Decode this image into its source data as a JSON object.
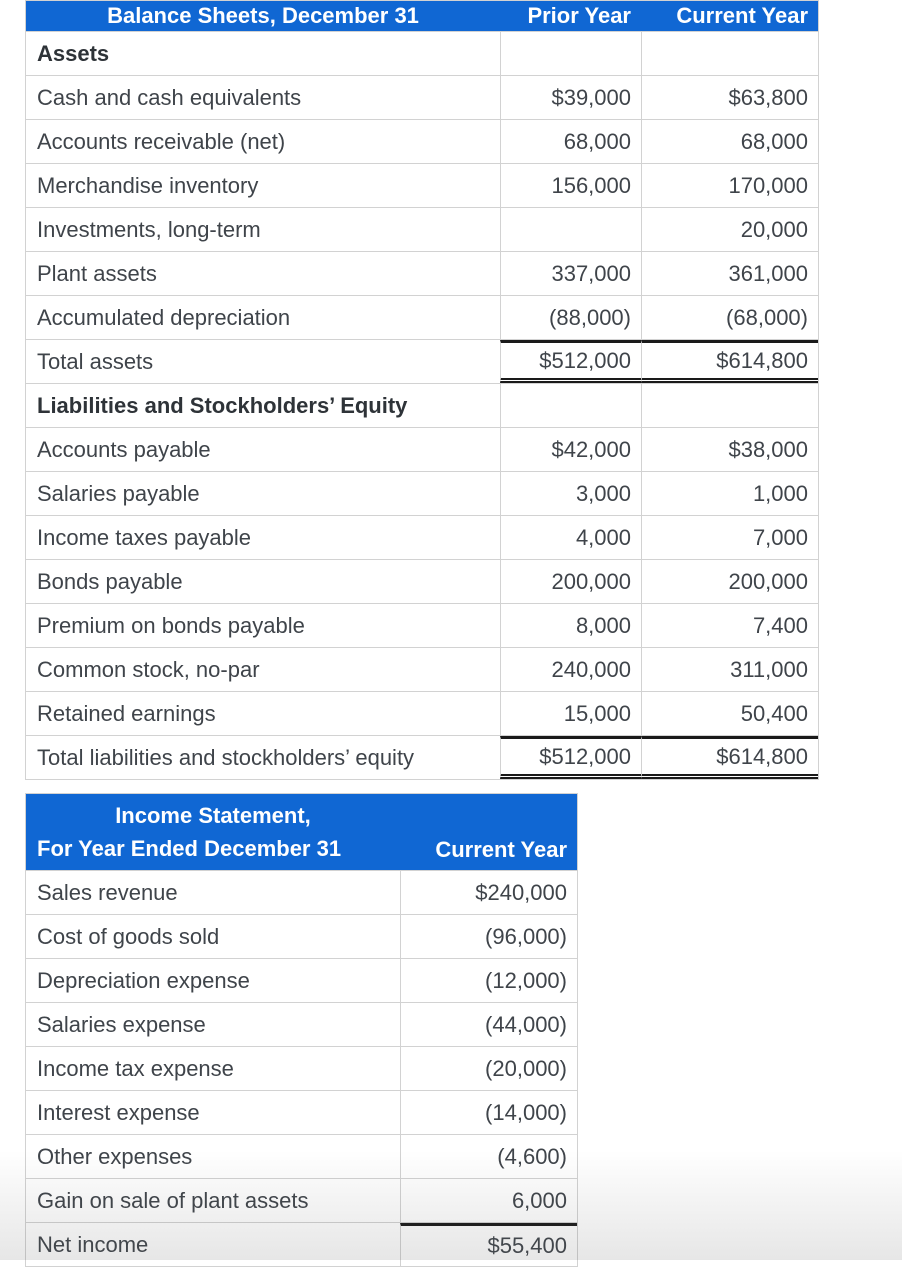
{
  "colors": {
    "accent_blue": "#1067d3",
    "grid_border": "#d2d2d2",
    "text": "#3f444a",
    "total_rule": "#1a1a1a"
  },
  "balance_sheet": {
    "title": "Balance Sheets, December 31",
    "columns": [
      "Prior Year",
      "Current Year"
    ],
    "rows": [
      {
        "label": "Assets",
        "prior": "",
        "current": "",
        "style": "section"
      },
      {
        "label": "Cash and cash equivalents",
        "prior": "$39,000",
        "current": "$63,800",
        "style": "item"
      },
      {
        "label": "Accounts receivable (net)",
        "prior": "68,000",
        "current": "68,000",
        "style": "item"
      },
      {
        "label": "Merchandise inventory",
        "prior": "156,000",
        "current": "170,000",
        "style": "item"
      },
      {
        "label": "Investments, long-term",
        "prior": "",
        "current": "20,000",
        "style": "item"
      },
      {
        "label": "Plant assets",
        "prior": "337,000",
        "current": "361,000",
        "style": "item"
      },
      {
        "label": "Accumulated depreciation",
        "prior": "(88,000)",
        "current": "(68,000)",
        "style": "item"
      },
      {
        "label": "Total assets",
        "prior": "$512,000",
        "current": "$614,800",
        "style": "total"
      },
      {
        "label": "Liabilities and Stockholders’ Equity",
        "prior": "",
        "current": "",
        "style": "section"
      },
      {
        "label": "Accounts payable",
        "prior": "$42,000",
        "current": "$38,000",
        "style": "item"
      },
      {
        "label": "Salaries payable",
        "prior": "3,000",
        "current": "1,000",
        "style": "item"
      },
      {
        "label": "Income taxes payable",
        "prior": "4,000",
        "current": "7,000",
        "style": "item"
      },
      {
        "label": "Bonds payable",
        "prior": "200,000",
        "current": "200,000",
        "style": "item"
      },
      {
        "label": "Premium on bonds payable",
        "prior": "8,000",
        "current": "7,400",
        "style": "item"
      },
      {
        "label": "Common stock, no-par",
        "prior": "240,000",
        "current": "311,000",
        "style": "item"
      },
      {
        "label": "Retained earnings",
        "prior": "15,000",
        "current": "50,400",
        "style": "item"
      },
      {
        "label": "Total liabilities and stockholders’ equity",
        "prior": "$512,000",
        "current": "$614,800",
        "style": "total"
      }
    ]
  },
  "income_statement": {
    "title_line1": "Income Statement,",
    "title_line2": "For Year Ended December 31",
    "column": "Current Year",
    "rows": [
      {
        "label": "Sales revenue",
        "current": "$240,000",
        "style": "item"
      },
      {
        "label": "Cost of goods sold",
        "current": "(96,000)",
        "style": "item"
      },
      {
        "label": "Depreciation expense",
        "current": "(12,000)",
        "style": "item"
      },
      {
        "label": "Salaries expense",
        "current": "(44,000)",
        "style": "item"
      },
      {
        "label": "Income tax expense",
        "current": "(20,000)",
        "style": "item"
      },
      {
        "label": "Interest expense",
        "current": "(14,000)",
        "style": "item"
      },
      {
        "label": "Other expenses",
        "current": "(4,600)",
        "style": "item"
      },
      {
        "label": "Gain on sale of plant assets",
        "current": "6,000",
        "style": "item"
      },
      {
        "label": "Net income",
        "current": "$55,400",
        "style": "net"
      }
    ]
  }
}
